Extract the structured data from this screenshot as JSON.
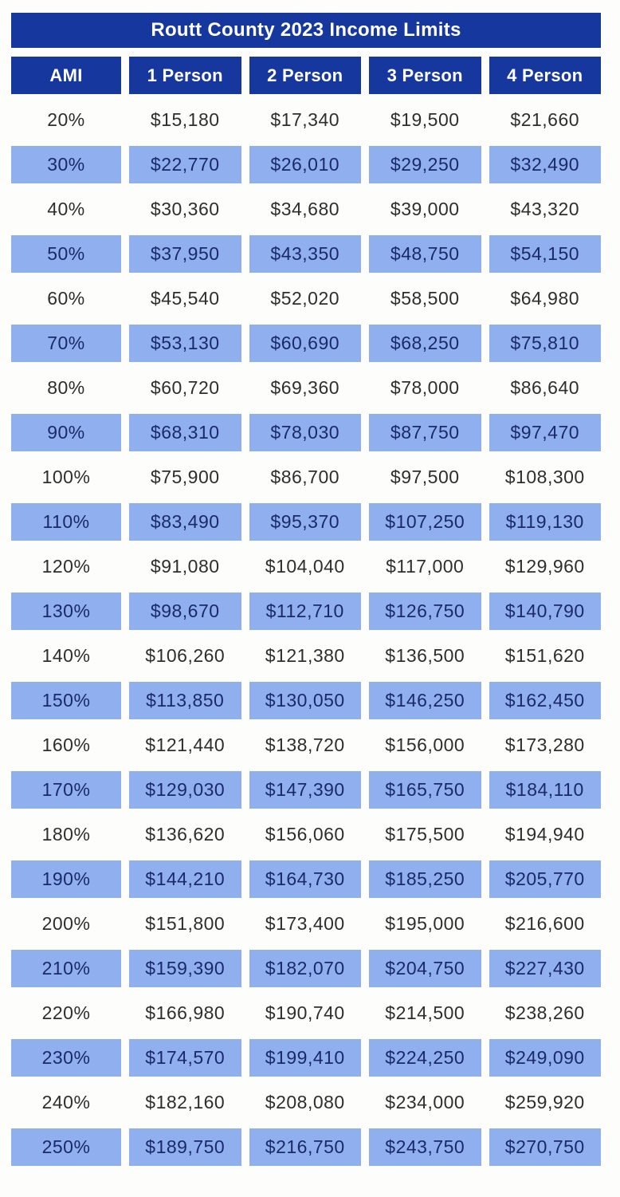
{
  "page": {
    "title": "Routt County 2023 Income Limits"
  },
  "table": {
    "columns": [
      "AMI",
      "1 Person",
      "2 Person",
      "3 Person",
      "4 Person"
    ],
    "rows": [
      {
        "ami": "20%",
        "values": [
          "$15,180",
          "$17,340",
          "$19,500",
          "$21,660"
        ],
        "highlighted": false
      },
      {
        "ami": "30%",
        "values": [
          "$22,770",
          "$26,010",
          "$29,250",
          "$32,490"
        ],
        "highlighted": true
      },
      {
        "ami": "40%",
        "values": [
          "$30,360",
          "$34,680",
          "$39,000",
          "$43,320"
        ],
        "highlighted": false
      },
      {
        "ami": "50%",
        "values": [
          "$37,950",
          "$43,350",
          "$48,750",
          "$54,150"
        ],
        "highlighted": true
      },
      {
        "ami": "60%",
        "values": [
          "$45,540",
          "$52,020",
          "$58,500",
          "$64,980"
        ],
        "highlighted": false
      },
      {
        "ami": "70%",
        "values": [
          "$53,130",
          "$60,690",
          "$68,250",
          "$75,810"
        ],
        "highlighted": true
      },
      {
        "ami": "80%",
        "values": [
          "$60,720",
          "$69,360",
          "$78,000",
          "$86,640"
        ],
        "highlighted": false
      },
      {
        "ami": "90%",
        "values": [
          "$68,310",
          "$78,030",
          "$87,750",
          "$97,470"
        ],
        "highlighted": true
      },
      {
        "ami": "100%",
        "values": [
          "$75,900",
          "$86,700",
          "$97,500",
          "$108,300"
        ],
        "highlighted": false
      },
      {
        "ami": "110%",
        "values": [
          "$83,490",
          "$95,370",
          "$107,250",
          "$119,130"
        ],
        "highlighted": true
      },
      {
        "ami": "120%",
        "values": [
          "$91,080",
          "$104,040",
          "$117,000",
          "$129,960"
        ],
        "highlighted": false
      },
      {
        "ami": "130%",
        "values": [
          "$98,670",
          "$112,710",
          "$126,750",
          "$140,790"
        ],
        "highlighted": true
      },
      {
        "ami": "140%",
        "values": [
          "$106,260",
          "$121,380",
          "$136,500",
          "$151,620"
        ],
        "highlighted": false
      },
      {
        "ami": "150%",
        "values": [
          "$113,850",
          "$130,050",
          "$146,250",
          "$162,450"
        ],
        "highlighted": true
      },
      {
        "ami": "160%",
        "values": [
          "$121,440",
          "$138,720",
          "$156,000",
          "$173,280"
        ],
        "highlighted": false
      },
      {
        "ami": "170%",
        "values": [
          "$129,030",
          "$147,390",
          "$165,750",
          "$184,110"
        ],
        "highlighted": true
      },
      {
        "ami": "180%",
        "values": [
          "$136,620",
          "$156,060",
          "$175,500",
          "$194,940"
        ],
        "highlighted": false
      },
      {
        "ami": "190%",
        "values": [
          "$144,210",
          "$164,730",
          "$185,250",
          "$205,770"
        ],
        "highlighted": true
      },
      {
        "ami": "200%",
        "values": [
          "$151,800",
          "$173,400",
          "$195,000",
          "$216,600"
        ],
        "highlighted": false
      },
      {
        "ami": "210%",
        "values": [
          "$159,390",
          "$182,070",
          "$204,750",
          "$227,430"
        ],
        "highlighted": true
      },
      {
        "ami": "220%",
        "values": [
          "$166,980",
          "$190,740",
          "$214,500",
          "$238,260"
        ],
        "highlighted": false
      },
      {
        "ami": "230%",
        "values": [
          "$174,570",
          "$199,410",
          "$224,250",
          "$249,090"
        ],
        "highlighted": true
      },
      {
        "ami": "240%",
        "values": [
          "$182,160",
          "$208,080",
          "$234,000",
          "$259,920"
        ],
        "highlighted": false
      },
      {
        "ami": "250%",
        "values": [
          "$189,750",
          "$216,750",
          "$243,750",
          "$270,750"
        ],
        "highlighted": true
      }
    ]
  },
  "colors": {
    "page_bg": "#FDFDFC",
    "header_bg": "#16389E",
    "header_text": "#FFFFFF",
    "highlight_bg": "#90AFEF",
    "highlight_text": "#1B2A67",
    "row_text": "#2E2E2E"
  },
  "chart_data": {
    "type": "table",
    "title": "Routt County 2023 Income Limits",
    "columns": [
      "AMI",
      "1 Person",
      "2 Person",
      "3 Person",
      "4 Person"
    ],
    "rows": [
      [
        "20%",
        15180,
        17340,
        19500,
        21660
      ],
      [
        "30%",
        22770,
        26010,
        29250,
        32490
      ],
      [
        "40%",
        30360,
        34680,
        39000,
        43320
      ],
      [
        "50%",
        37950,
        43350,
        48750,
        54150
      ],
      [
        "60%",
        45540,
        52020,
        58500,
        64980
      ],
      [
        "70%",
        53130,
        60690,
        68250,
        75810
      ],
      [
        "80%",
        60720,
        69360,
        78000,
        86640
      ],
      [
        "90%",
        68310,
        78030,
        87750,
        97470
      ],
      [
        "100%",
        75900,
        86700,
        97500,
        108300
      ],
      [
        "110%",
        83490,
        95370,
        107250,
        119130
      ],
      [
        "120%",
        91080,
        104040,
        117000,
        129960
      ],
      [
        "130%",
        98670,
        112710,
        126750,
        140790
      ],
      [
        "140%",
        106260,
        121380,
        136500,
        151620
      ],
      [
        "150%",
        113850,
        130050,
        146250,
        162450
      ],
      [
        "160%",
        121440,
        138720,
        156000,
        173280
      ],
      [
        "170%",
        129030,
        147390,
        165750,
        184110
      ],
      [
        "180%",
        136620,
        156060,
        175500,
        194940
      ],
      [
        "190%",
        144210,
        164730,
        185250,
        205770
      ],
      [
        "200%",
        151800,
        173400,
        195000,
        216600
      ],
      [
        "210%",
        159390,
        182070,
        204750,
        227430
      ],
      [
        "220%",
        166980,
        190740,
        214500,
        238260
      ],
      [
        "230%",
        174570,
        199410,
        224250,
        249090
      ],
      [
        "240%",
        182160,
        208080,
        234000,
        259920
      ],
      [
        "250%",
        189750,
        216750,
        243750,
        270750
      ]
    ]
  }
}
